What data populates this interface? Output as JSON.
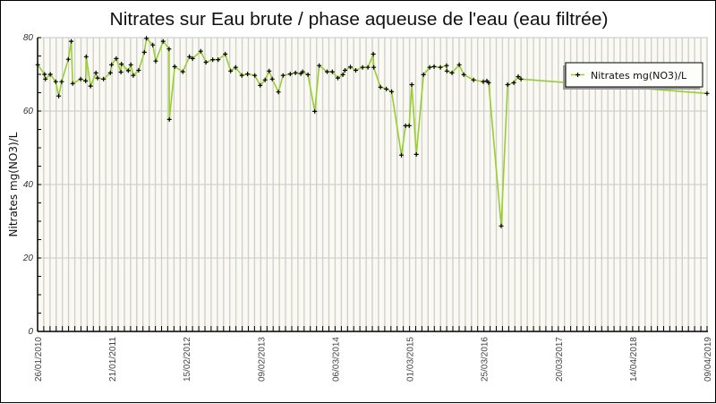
{
  "title": "Nitrates sur Eau brute / phase aqueuse de l'eau (eau filtrée)",
  "colors": {
    "series_line": "#9ACD32",
    "marker": "#000000",
    "plot_background": "#FAFAF3",
    "grid": "#D0D0D0",
    "axis": "#000000",
    "legend_shadow": "#9A9A9A"
  },
  "chart_data": {
    "type": "line",
    "title": "Nitrates sur Eau brute / phase aqueuse de l'eau (eau filtrée)",
    "xlabel": "",
    "ylabel": "Nitrates mg(NO3)/L",
    "ylim": [
      0,
      80
    ],
    "yticks": [
      0,
      20,
      40,
      60,
      80
    ],
    "ytick_labels": [
      "0",
      "20",
      "40",
      "60",
      "80"
    ],
    "xlim": [
      "2010-01-26",
      "2019-04-09"
    ],
    "xtick_labels": [
      "26/01/2010",
      "21/01/2011",
      "15/02/2012",
      "09/02/2013",
      "06/03/2014",
      "01/03/2015",
      "25/03/2016",
      "20/03/2017",
      "14/04/2018",
      "09/04/2019"
    ],
    "grid": true,
    "legend": {
      "position": "top-right",
      "entries": [
        "Nitrates mg(NO3)/L"
      ]
    },
    "series": [
      {
        "name": "Nitrates mg(NO3)/L",
        "color": "#9ACD32",
        "x": [
          "2010-01-27",
          "2010-03-02",
          "2010-03-06",
          "2010-03-31",
          "2010-04-27",
          "2010-05-12",
          "2010-05-27",
          "2010-06-29",
          "2010-07-14",
          "2010-07-21",
          "2010-08-30",
          "2010-09-24",
          "2010-09-27",
          "2010-10-19",
          "2010-11-15",
          "2010-11-23",
          "2010-12-23",
          "2011-01-26",
          "2011-02-01",
          "2011-02-25",
          "2011-03-20",
          "2011-03-23",
          "2011-04-26",
          "2011-05-09",
          "2011-05-21",
          "2011-06-17",
          "2011-07-16",
          "2011-07-26",
          "2011-08-27",
          "2011-09-11",
          "2011-10-18",
          "2011-11-17",
          "2011-11-18",
          "2011-12-15",
          "2012-01-25",
          "2012-02-27",
          "2012-03-14",
          "2012-04-24",
          "2012-05-20",
          "2012-06-23",
          "2012-07-20",
          "2012-08-25",
          "2012-09-21",
          "2012-10-16",
          "2012-11-16",
          "2012-12-15",
          "2013-01-20",
          "2013-02-16",
          "2013-03-13",
          "2013-04-02",
          "2013-04-18",
          "2013-05-19",
          "2013-06-11",
          "2013-07-17",
          "2013-08-12",
          "2013-09-08",
          "2013-09-17",
          "2013-10-14",
          "2013-11-17",
          "2013-12-09",
          "2014-01-18",
          "2014-02-13",
          "2014-03-13",
          "2014-04-07",
          "2014-04-18",
          "2014-05-15",
          "2014-06-11",
          "2014-07-15",
          "2014-08-11",
          "2014-09-07",
          "2014-09-09",
          "2014-10-13",
          "2014-11-11",
          "2014-12-08",
          "2015-01-26",
          "2015-02-16",
          "2015-03-06",
          "2015-03-19",
          "2015-04-11",
          "2015-05-17",
          "2015-06-17",
          "2015-07-09",
          "2015-08-10",
          "2015-09-10",
          "2015-09-11",
          "2015-10-07",
          "2015-11-12",
          "2015-12-05",
          "2016-01-23",
          "2016-03-12",
          "2016-03-30",
          "2016-04-08",
          "2016-06-10",
          "2016-07-12",
          "2016-08-12",
          "2016-09-03",
          "2016-09-17",
          "2019-04-09"
        ],
        "y": [
          72.6,
          70.0,
          68.7,
          70.0,
          68.0,
          64.1,
          68.0,
          74.1,
          79.0,
          67.5,
          68.7,
          68.2,
          74.8,
          66.8,
          70.4,
          69.0,
          68.7,
          70.4,
          72.6,
          74.3,
          70.6,
          72.8,
          71.0,
          72.6,
          69.7,
          71.1,
          76.0,
          79.8,
          78.0,
          73.6,
          79.0,
          76.9,
          57.7,
          72.1,
          70.7,
          74.8,
          74.3,
          76.3,
          73.3,
          74.0,
          74.0,
          75.5,
          70.9,
          71.9,
          69.7,
          70.1,
          69.7,
          67.0,
          68.5,
          70.9,
          68.7,
          65.2,
          69.7,
          70.1,
          70.4,
          70.2,
          70.7,
          69.9,
          59.9,
          72.4,
          70.7,
          70.7,
          69.0,
          69.9,
          71.1,
          72.0,
          71.1,
          71.9,
          71.9,
          75.5,
          71.9,
          66.5,
          66.0,
          65.3,
          48.0,
          56.0,
          56.0,
          67.2,
          48.2,
          69.9,
          71.9,
          72.1,
          71.9,
          72.4,
          70.9,
          70.4,
          72.6,
          69.9,
          68.5,
          68.0,
          68.2,
          67.7,
          28.7,
          67.2,
          67.7,
          69.4,
          68.7,
          64.8
        ]
      }
    ]
  }
}
